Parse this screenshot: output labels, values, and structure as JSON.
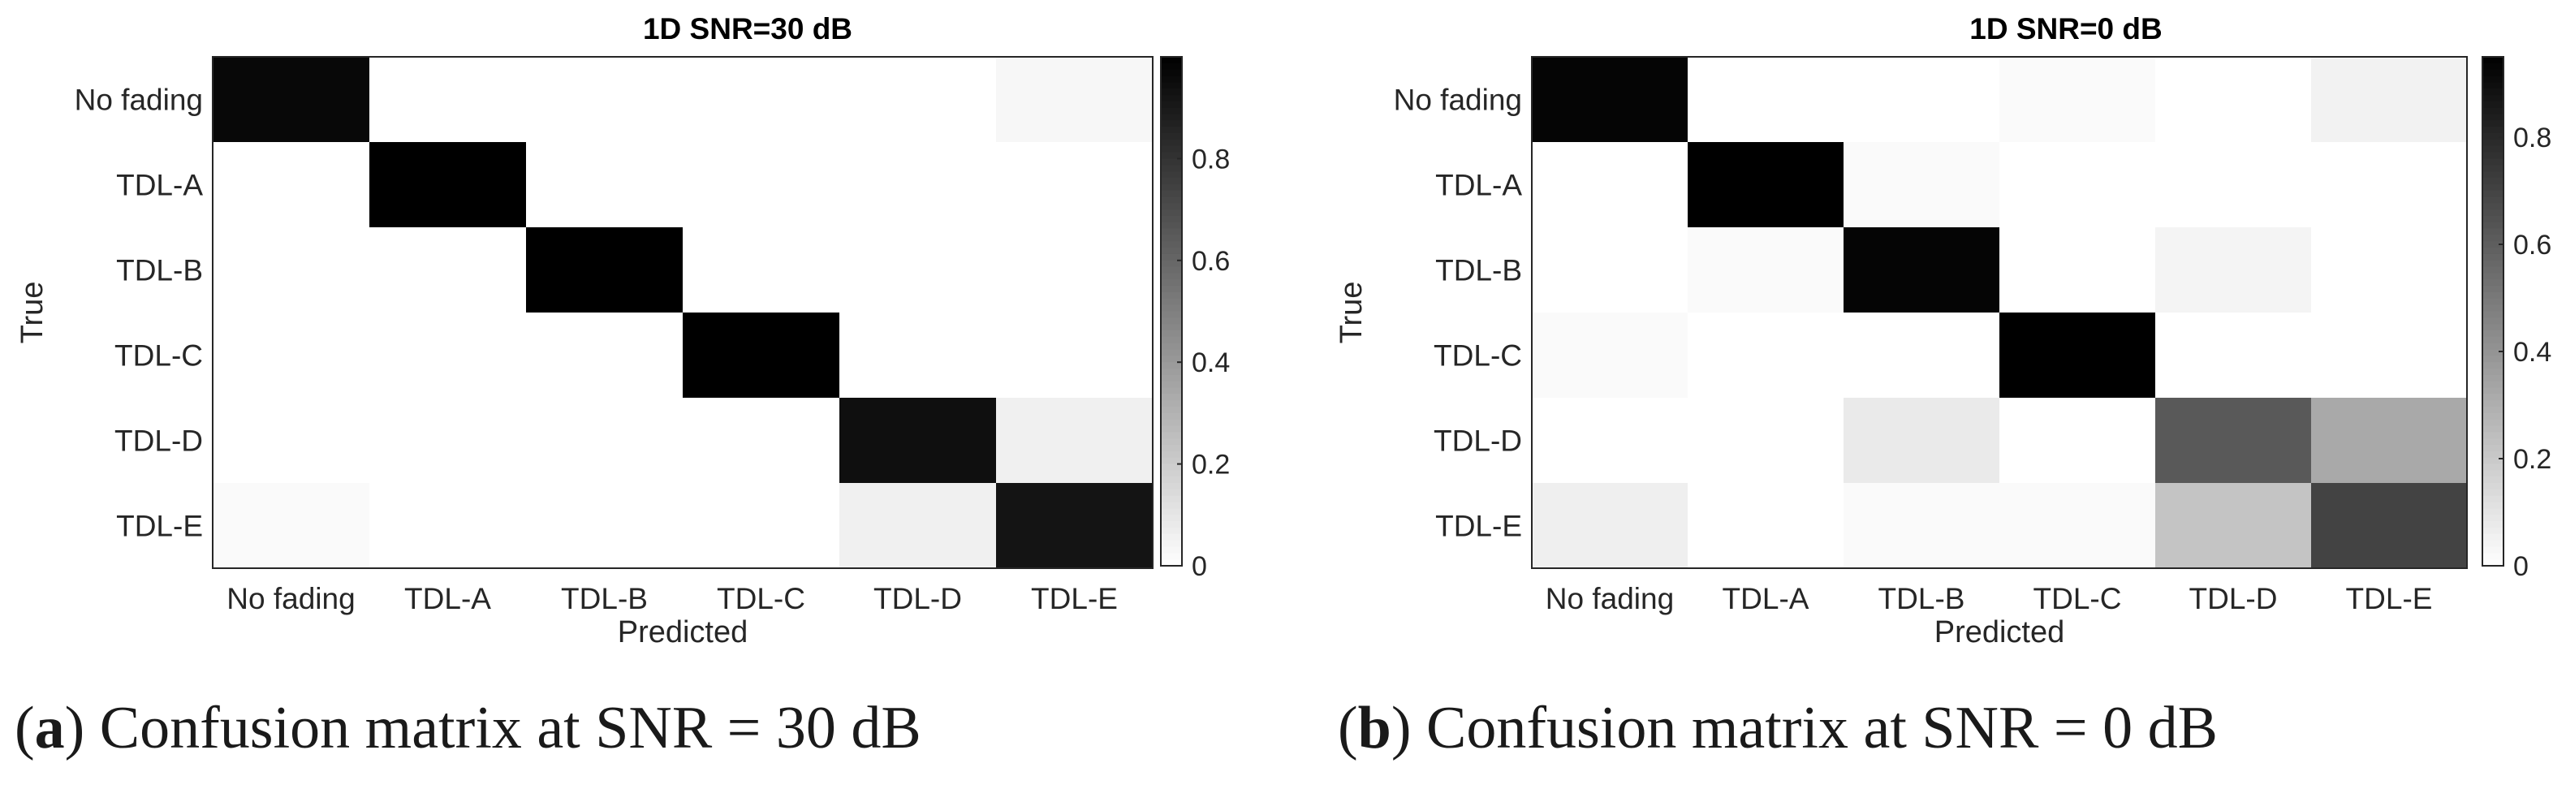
{
  "chart_data": [
    {
      "type": "heatmap",
      "title": "1D SNR=30 dB",
      "xlabel": "Predicted",
      "ylabel": "True",
      "x_categories": [
        "No fading",
        "TDL-A",
        "TDL-B",
        "TDL-C",
        "TDL-D",
        "TDL-E"
      ],
      "y_categories": [
        "No fading",
        "TDL-A",
        "TDL-B",
        "TDL-C",
        "TDL-D",
        "TDL-E"
      ],
      "values": [
        [
          0.97,
          0.0,
          0.0,
          0.0,
          0.0,
          0.03
        ],
        [
          0.0,
          1.0,
          0.0,
          0.0,
          0.0,
          0.0
        ],
        [
          0.0,
          0.0,
          1.0,
          0.0,
          0.0,
          0.0
        ],
        [
          0.0,
          0.0,
          0.0,
          1.0,
          0.0,
          0.0
        ],
        [
          0.0,
          0.0,
          0.0,
          0.0,
          0.94,
          0.06
        ],
        [
          0.02,
          0.0,
          0.0,
          0.0,
          0.06,
          0.92
        ]
      ],
      "colorbar": {
        "range": [
          0,
          1
        ],
        "ticks": [
          "0",
          "0.2",
          "0.4",
          "0.6",
          "0.8"
        ]
      },
      "colormap": "gray-reversed"
    },
    {
      "type": "heatmap",
      "title": "1D SNR=0 dB",
      "xlabel": "Predicted",
      "ylabel": "True",
      "x_categories": [
        "No fading",
        "TDL-A",
        "TDL-B",
        "TDL-C",
        "TDL-D",
        "TDL-E"
      ],
      "y_categories": [
        "No fading",
        "TDL-A",
        "TDL-B",
        "TDL-C",
        "TDL-D",
        "TDL-E"
      ],
      "values": [
        [
          0.93,
          0.0,
          0.0,
          0.02,
          0.0,
          0.05
        ],
        [
          0.0,
          0.98,
          0.02,
          0.0,
          0.0,
          0.0
        ],
        [
          0.0,
          0.02,
          0.93,
          0.0,
          0.04,
          0.0
        ],
        [
          0.02,
          0.0,
          0.0,
          0.98,
          0.0,
          0.0
        ],
        [
          0.0,
          0.0,
          0.08,
          0.0,
          0.62,
          0.32
        ],
        [
          0.06,
          0.0,
          0.02,
          0.02,
          0.22,
          0.7
        ]
      ],
      "colorbar": {
        "range": [
          0,
          0.95
        ],
        "ticks": [
          "0",
          "0.2",
          "0.4",
          "0.6",
          "0.8"
        ]
      },
      "colormap": "gray-reversed"
    }
  ],
  "captions": [
    {
      "label": "a",
      "text": ") Confusion matrix at SNR = 30 dB"
    },
    {
      "label": "b",
      "text": ") Confusion matrix at SNR = 0 dB"
    }
  ]
}
